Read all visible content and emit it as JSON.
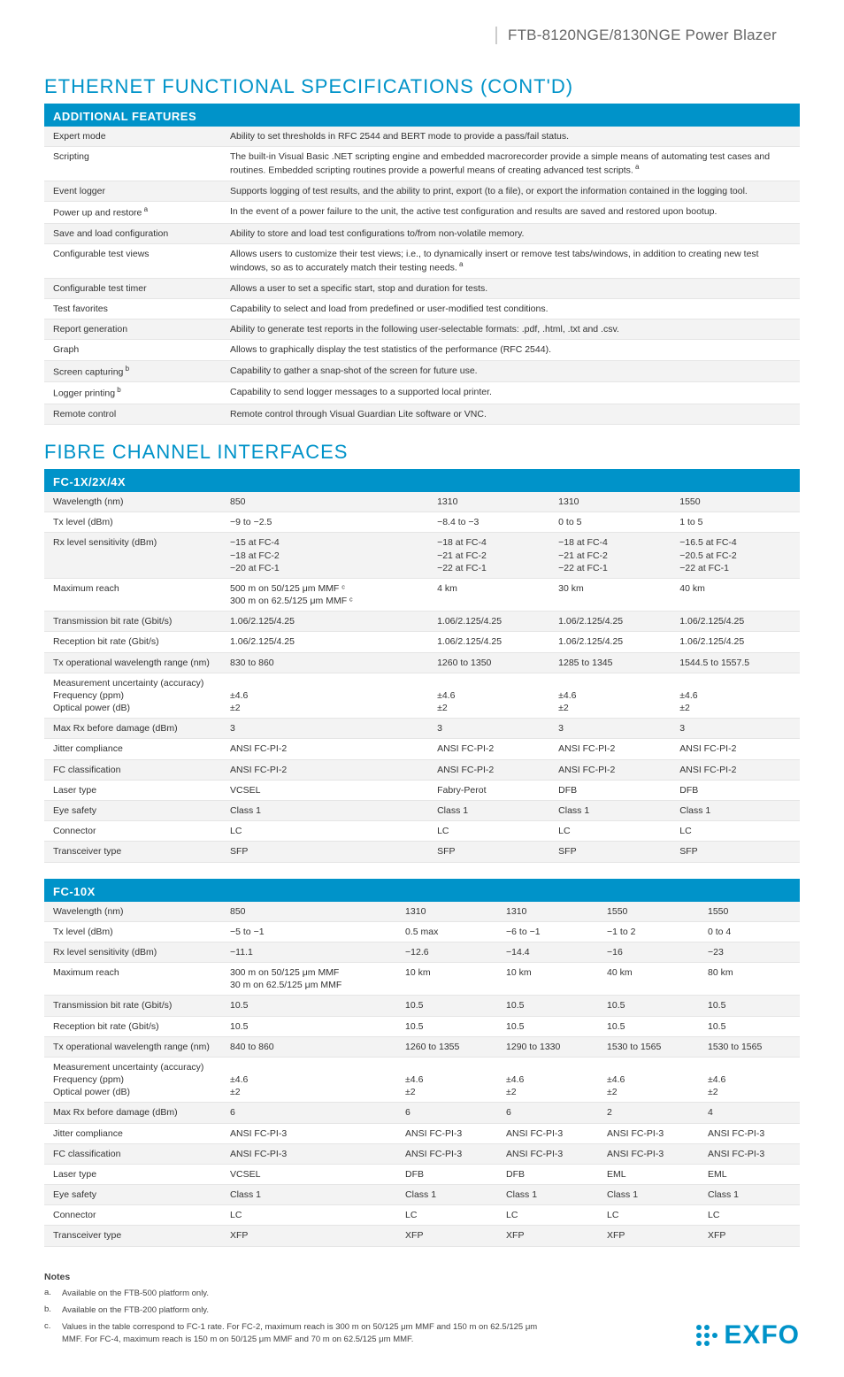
{
  "header": {
    "product_line": "FTB-8120NGE/8130NGE Power Blazer"
  },
  "section1": {
    "title": "ETHERNET FUNCTIONAL SPECIFICATIONS (CONT'D)",
    "table_title": "ADDITIONAL FEATURES",
    "rows": [
      {
        "label": "Expert mode",
        "desc": "Ability to set thresholds in RFC 2544 and BERT mode to provide a pass/fail status."
      },
      {
        "label": "Scripting",
        "desc": "The built-in Visual Basic .NET scripting engine and embedded macrorecorder provide a simple means of automating test cases and routines. Embedded scripting routines provide a powerful means of creating advanced test scripts.",
        "sup": "a"
      },
      {
        "label": "Event logger",
        "desc": "Supports logging of test results, and the ability to print, export (to a file), or export the information contained in the logging tool."
      },
      {
        "label": "Power up and restore",
        "label_sup": "a",
        "desc": "In the event of a power failure to the unit, the active test configuration and results are saved and restored upon bootup."
      },
      {
        "label": "Save and load configuration",
        "desc": "Ability to store and load test configurations to/from non-volatile memory."
      },
      {
        "label": "Configurable test views",
        "desc": "Allows users to customize their test views; i.e., to dynamically insert or remove test tabs/windows, in addition to creating new test windows, so as to accurately match their testing needs.",
        "sup": "a"
      },
      {
        "label": "Configurable test timer",
        "desc": "Allows a user to set a specific start, stop and duration for tests."
      },
      {
        "label": "Test favorites",
        "desc": "Capability to select and load from predefined or user-modified test conditions."
      },
      {
        "label": "Report generation",
        "desc": "Ability to generate test reports in the following user-selectable formats: .pdf, .html, .txt and .csv."
      },
      {
        "label": "Graph",
        "desc": "Allows to graphically display the test statistics of the performance (RFC 2544)."
      },
      {
        "label": "Screen capturing",
        "label_sup": "b",
        "desc": "Capability to gather a snap-shot of the screen for future use."
      },
      {
        "label": "Logger printing",
        "label_sup": "b",
        "desc": "Capability to send logger messages to a supported local printer."
      },
      {
        "label": "Remote control",
        "desc": "Remote control through Visual Guardian Lite software or VNC."
      }
    ]
  },
  "section2": {
    "title": "FIBRE CHANNEL INTERFACES",
    "table1": {
      "title": "FC-1X/2X/4X",
      "rows": [
        {
          "label": "Wavelength (nm)",
          "c": [
            "850",
            "1310",
            "1310",
            "1550"
          ]
        },
        {
          "label": "Tx level (dBm)",
          "c": [
            "−9 to −2.5",
            "−8.4 to −3",
            "0 to 5",
            "1 to 5"
          ]
        },
        {
          "label": "Rx level sensitivity (dBm)",
          "c": [
            "−15 at FC-4\n−18 at FC-2\n−20 at FC-1",
            "−18 at FC-4\n−21 at FC-2\n−22 at FC-1",
            "−18 at FC-4\n−21 at FC-2\n−22 at FC-1",
            "−16.5 at FC-4\n−20.5 at FC-2\n−22 at FC-1"
          ]
        },
        {
          "label": "Maximum reach",
          "c": [
            "500 m on 50/125 μm MMF ᶜ\n300 m on 62.5/125 μm MMF ᶜ",
            "4 km",
            "30 km",
            "40 km"
          ]
        },
        {
          "label": "Transmission bit rate (Gbit/s)",
          "c": [
            "1.06/2.125/4.25",
            "1.06/2.125/4.25",
            "1.06/2.125/4.25",
            "1.06/2.125/4.25"
          ]
        },
        {
          "label": "Reception bit rate (Gbit/s)",
          "c": [
            "1.06/2.125/4.25",
            "1.06/2.125/4.25",
            "1.06/2.125/4.25",
            "1.06/2.125/4.25"
          ]
        },
        {
          "label": "Tx operational wavelength range (nm)",
          "c": [
            "830 to 860",
            "1260 to 1350",
            "1285 to 1345",
            "1544.5 to 1557.5"
          ]
        },
        {
          "label": "Measurement uncertainty (accuracy)\n   Frequency (ppm)\n   Optical power (dB)",
          "c": [
            "\n±4.6\n±2",
            "\n±4.6\n±2",
            "\n±4.6\n±2",
            "\n±4.6\n±2"
          ]
        },
        {
          "label": "Max Rx before damage (dBm)",
          "c": [
            "3",
            "3",
            "3",
            "3"
          ]
        },
        {
          "label": "Jitter compliance",
          "c": [
            "ANSI FC-PI-2",
            "ANSI FC-PI-2",
            "ANSI FC-PI-2",
            "ANSI FC-PI-2"
          ]
        },
        {
          "label": "FC classification",
          "c": [
            "ANSI FC-PI-2",
            "ANSI FC-PI-2",
            "ANSI FC-PI-2",
            "ANSI FC-PI-2"
          ]
        },
        {
          "label": "Laser type",
          "c": [
            "VCSEL",
            "Fabry-Perot",
            "DFB",
            "DFB"
          ]
        },
        {
          "label": "Eye safety",
          "c": [
            "Class 1",
            "Class 1",
            "Class 1",
            "Class 1"
          ]
        },
        {
          "label": "Connector",
          "c": [
            "LC",
            "LC",
            "LC",
            "LC"
          ]
        },
        {
          "label": "Transceiver type",
          "c": [
            "SFP",
            "SFP",
            "SFP",
            "SFP"
          ]
        }
      ]
    },
    "table2": {
      "title": "FC-10X",
      "rows": [
        {
          "label": "Wavelength (nm)",
          "c": [
            "850",
            "1310",
            "1310",
            "1550",
            "1550"
          ]
        },
        {
          "label": "Tx level (dBm)",
          "c": [
            "−5 to −1",
            "0.5 max",
            "−6 to −1",
            "−1 to 2",
            "0 to 4"
          ]
        },
        {
          "label": "Rx level sensitivity (dBm)",
          "c": [
            "−11.1",
            "−12.6",
            "−14.4",
            "−16",
            "−23"
          ]
        },
        {
          "label": "Maximum reach",
          "c": [
            "300 m on 50/125 μm MMF\n30 m on 62.5/125 μm MMF",
            "10 km",
            "10 km",
            "40 km",
            "80 km"
          ]
        },
        {
          "label": "Transmission bit rate (Gbit/s)",
          "c": [
            "10.5",
            "10.5",
            "10.5",
            "10.5",
            "10.5"
          ]
        },
        {
          "label": "Reception bit rate (Gbit/s)",
          "c": [
            "10.5",
            "10.5",
            "10.5",
            "10.5",
            "10.5"
          ]
        },
        {
          "label": "Tx operational wavelength range (nm)",
          "c": [
            "840 to 860",
            "1260 to 1355",
            "1290 to 1330",
            "1530 to 1565",
            "1530 to 1565"
          ]
        },
        {
          "label": "Measurement uncertainty (accuracy)\n   Frequency (ppm)\n   Optical power (dB)",
          "c": [
            "\n±4.6\n±2",
            "\n±4.6\n±2",
            "\n±4.6\n±2",
            "\n±4.6\n±2",
            "\n±4.6\n±2"
          ]
        },
        {
          "label": "Max Rx before damage (dBm)",
          "c": [
            "6",
            "6",
            "6",
            "2",
            "4"
          ]
        },
        {
          "label": "Jitter compliance",
          "c": [
            "ANSI FC-PI-3",
            "ANSI FC-PI-3",
            "ANSI FC-PI-3",
            "ANSI FC-PI-3",
            "ANSI FC-PI-3"
          ]
        },
        {
          "label": "FC classification",
          "c": [
            "ANSI FC-PI-3",
            "ANSI FC-PI-3",
            "ANSI FC-PI-3",
            "ANSI FC-PI-3",
            "ANSI FC-PI-3"
          ]
        },
        {
          "label": "Laser type",
          "c": [
            "VCSEL",
            "DFB",
            "DFB",
            "EML",
            "EML"
          ]
        },
        {
          "label": "Eye safety",
          "c": [
            "Class 1",
            "Class 1",
            "Class 1",
            "Class 1",
            "Class 1"
          ]
        },
        {
          "label": "Connector",
          "c": [
            "LC",
            "LC",
            "LC",
            "LC",
            "LC"
          ]
        },
        {
          "label": "Transceiver type",
          "c": [
            "XFP",
            "XFP",
            "XFP",
            "XFP",
            "XFP"
          ]
        }
      ]
    }
  },
  "notes": {
    "title": "Notes",
    "items": [
      {
        "letter": "a.",
        "text": "Available on the FTB-500 platform only."
      },
      {
        "letter": "b.",
        "text": "Available on the FTB-200 platform only."
      },
      {
        "letter": "c.",
        "text": "Values in the table correspond to FC-1 rate. For FC-2, maximum reach is 300 m on 50/125 μm MMF and 150 m on 62.5/125 μm MMF. For FC-4, maximum reach is 150 m on 50/125 μm MMF and 70 m on 62.5/125 μm MMF."
      }
    ]
  },
  "logo": {
    "text": "EXFO",
    "color": "#0093c9"
  },
  "colors": {
    "accent": "#0093c9",
    "row_alt": "#f3f3f3",
    "text": "#333333",
    "header_text": "#666666"
  }
}
